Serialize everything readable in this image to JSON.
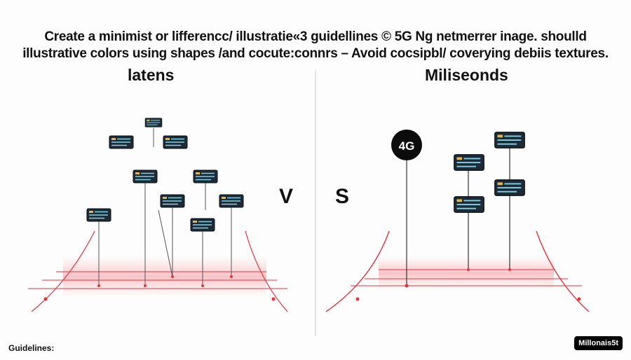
{
  "header": {
    "line1": "Create a minimist or lifferencc/ illustratie«3 guidellines © 5G Ng netmerrer inage. shoulld",
    "line2": "illustrative colors using shapes /and cocute:connrs – Avoid cocsipbl/ coverying debiis textures."
  },
  "left_panel": {
    "title": "latens"
  },
  "right_panel": {
    "title": "Miliseonds",
    "node_label": "4G"
  },
  "versus": {
    "left": "V",
    "right": "S"
  },
  "footer": {
    "label": "Guidelines:",
    "badge": "Millonais5t"
  },
  "colors": {
    "accent_red": "#e8323c",
    "device": "#1e2a36",
    "device_line": "#7fd3e6"
  }
}
